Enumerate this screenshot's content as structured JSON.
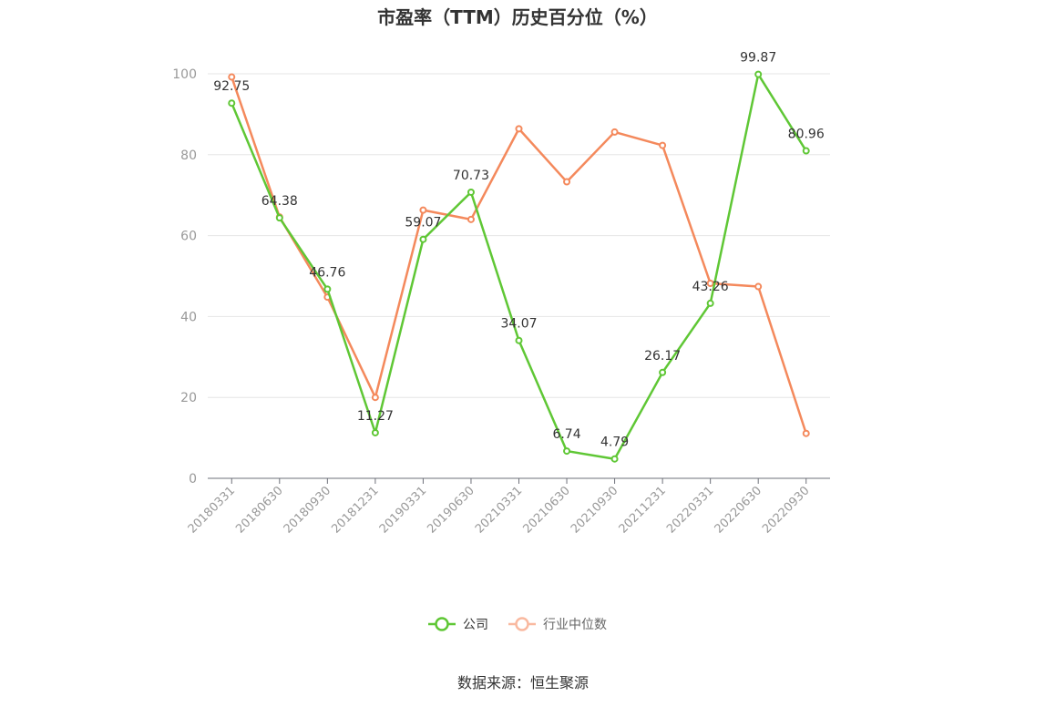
{
  "chart_data": {
    "type": "line",
    "title": "市盈率（TTM）历史百分位（%）",
    "categories": [
      "20180331",
      "20180630",
      "20180930",
      "20181231",
      "20190331",
      "20190630",
      "20210331",
      "20210630",
      "20210930",
      "20211231",
      "20220331",
      "20220630",
      "20220930"
    ],
    "ylim": [
      0,
      100
    ],
    "yticks": [
      0,
      20,
      40,
      60,
      80,
      100
    ],
    "grid": true,
    "legend_position": "bottom",
    "series": [
      {
        "name": "公司",
        "color": "#5fc735",
        "values": [
          92.75,
          64.38,
          46.76,
          11.27,
          59.07,
          70.73,
          34.07,
          6.74,
          4.79,
          26.17,
          43.26,
          99.87,
          80.96
        ],
        "labels": [
          "92.75",
          "64.38",
          "46.76",
          "11.27",
          "59.07",
          "70.73",
          "34.07",
          "6.74",
          "4.79",
          "26.17",
          "43.26",
          "99.87",
          "80.96"
        ]
      },
      {
        "name": "行业中位数",
        "color": "#f4895c",
        "legend_color": "#f9b9a0",
        "values": [
          99.2,
          64.6,
          44.8,
          20.0,
          66.3,
          64.0,
          86.4,
          73.3,
          85.6,
          82.3,
          48.2,
          47.4,
          11.1
        ]
      }
    ]
  },
  "source": "数据来源：恒生聚源"
}
